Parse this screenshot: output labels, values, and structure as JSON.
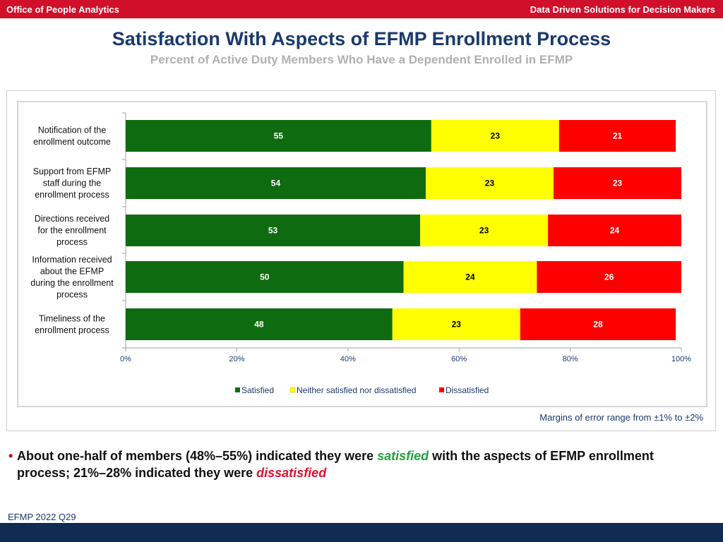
{
  "header": {
    "left": "Office of People Analytics",
    "right": "Data Driven Solutions for Decision Makers"
  },
  "title": "Satisfaction With Aspects of EFMP Enrollment Process",
  "subtitle": "Percent of Active Duty Members Who Have a Dependent Enrolled in EFMP",
  "chart_data": {
    "type": "bar",
    "orientation": "horizontal",
    "stacked": true,
    "categories": [
      [
        "Notification of the",
        "enrollment outcome"
      ],
      [
        "Support from EFMP",
        "staff during the",
        "enrollment process"
      ],
      [
        "Directions received",
        "for the enrollment",
        "process"
      ],
      [
        "Information received",
        "about the EFMP",
        "during the enrollment",
        "process"
      ],
      [
        "Timeliness of the",
        "enrollment process"
      ]
    ],
    "series": [
      {
        "name": "Satisfied",
        "color": "#0f6b10",
        "values": [
          55,
          54,
          53,
          50,
          48
        ]
      },
      {
        "name": "Neither satisfied nor dissatisfied",
        "color": "#ffff00",
        "values": [
          23,
          23,
          23,
          24,
          23
        ]
      },
      {
        "name": "Dissatisfied",
        "color": "#ff0000",
        "values": [
          21,
          23,
          24,
          26,
          28
        ]
      }
    ],
    "xlim": [
      0,
      100
    ],
    "xticks": [
      "0%",
      "20%",
      "40%",
      "60%",
      "80%",
      "100%"
    ],
    "legend_position": "bottom",
    "grid": false
  },
  "margin_note": "Margins of error range from ±1% to ±2%",
  "bullet": {
    "part1": "About one-half of members (48%–55%) indicated they were ",
    "satisfied": "satisfied",
    "part2": " with the aspects of EFMP enrollment process; 21%–28% indicated they were ",
    "dissatisfied": "dissatisfied"
  },
  "footer": "EFMP 2022 Q29"
}
